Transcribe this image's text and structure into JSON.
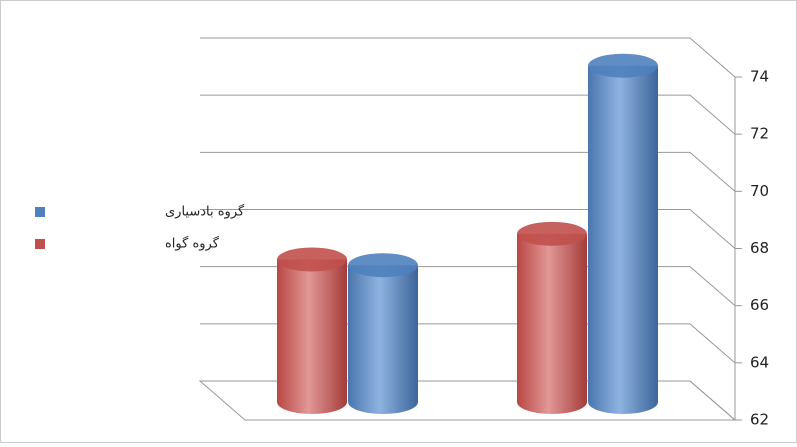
{
  "chart_data": {
    "type": "bar3d",
    "categories": [
      null,
      null
    ],
    "series": [
      {
        "name": "گروه بادسیاری",
        "color": "#4f81bd",
        "values": [
          66.8,
          73.8
        ]
      },
      {
        "name": "گروه گواه",
        "color": "#c0504d",
        "values": [
          67.0,
          67.9
        ]
      }
    ],
    "ylim": [
      62,
      74
    ],
    "yticks": [
      62,
      64,
      66,
      68,
      70,
      72,
      74
    ],
    "grid": true,
    "legend": "left"
  }
}
